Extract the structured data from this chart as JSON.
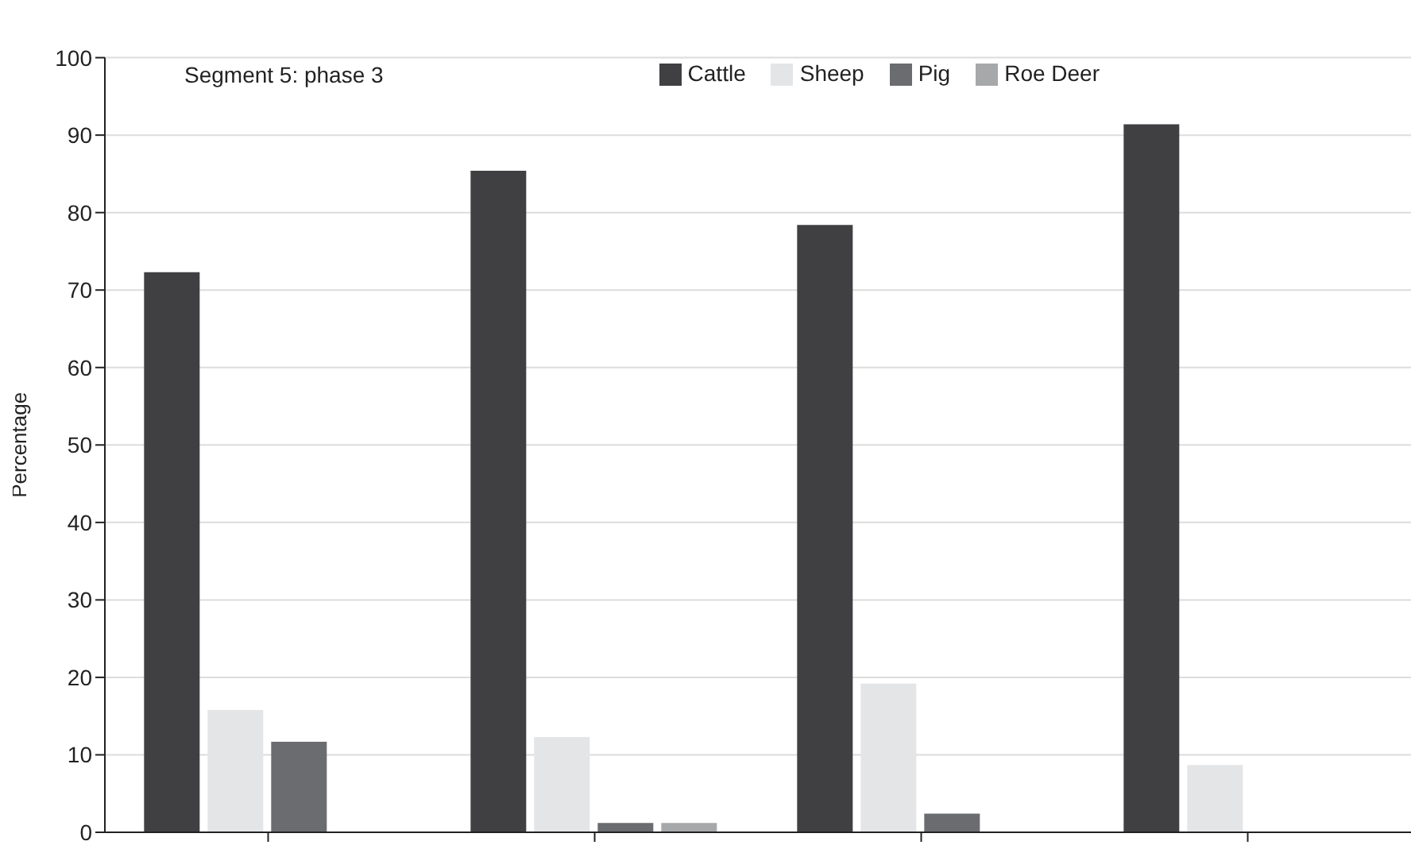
{
  "chart_data": {
    "type": "bar",
    "title": "Segment 5: phase 3",
    "ylabel": "Percentage",
    "categories": [
      null,
      null,
      null,
      null
    ],
    "series": [
      {
        "name": "Cattle",
        "color": "#404042",
        "values": [
          72.3,
          85.4,
          78.4,
          91.4
        ]
      },
      {
        "name": "Sheep",
        "color": "#e4e5e6",
        "values": [
          15.8,
          12.3,
          19.2,
          8.7
        ]
      },
      {
        "name": "Pig",
        "color": "#6b6c6f",
        "values": [
          11.7,
          1.2,
          2.4,
          0
        ]
      },
      {
        "name": "Roe Deer",
        "color": "#a7a8aa",
        "values": [
          0,
          1.2,
          0,
          0
        ]
      }
    ],
    "ylim": [
      0,
      100
    ],
    "yticks": [
      0,
      10,
      20,
      30,
      40,
      50,
      60,
      70,
      80,
      90,
      100
    ],
    "grid": "y",
    "legend": "top"
  }
}
